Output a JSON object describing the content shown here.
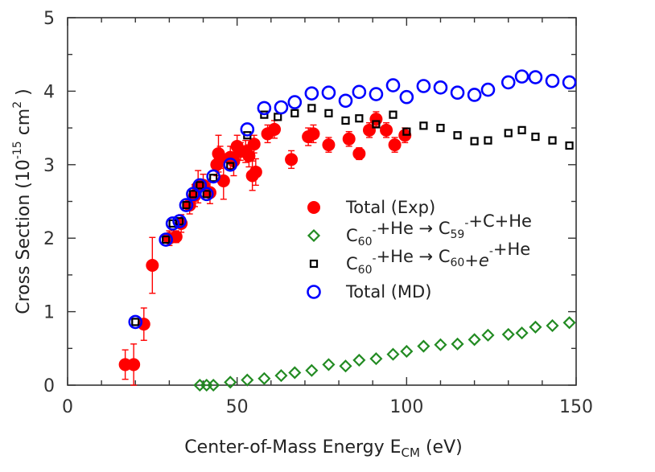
{
  "chart_data": {
    "type": "scatter",
    "xlabel": {
      "main": "Center-of-Mass Energy E",
      "sub": "CM",
      "tail": " (eV)"
    },
    "ylabel": {
      "main": "Cross Section (10",
      "sup": "-15",
      "mid": " cm",
      "sup2": "2",
      "tail": " )"
    },
    "xlim": [
      0,
      150
    ],
    "ylim": [
      0,
      5
    ],
    "x_ticks": [
      0,
      50,
      100,
      150
    ],
    "y_ticks": [
      0,
      1,
      2,
      3,
      4,
      5
    ],
    "grid": false,
    "legend_placement": "center-right",
    "series": [
      {
        "key": "total_exp",
        "marker": "filled-circle",
        "color": "#ff0000",
        "label_parts": [
          {
            "t": "Total (Exp)"
          }
        ],
        "points": [
          {
            "x": 17,
            "y": 0.28,
            "err": 0.2
          },
          {
            "x": 19.5,
            "y": 0.28,
            "err": 0.28
          },
          {
            "x": 22.5,
            "y": 0.83,
            "err": 0.22
          },
          {
            "x": 25,
            "y": 1.63,
            "err": 0.38
          },
          {
            "x": 30,
            "y": 2.0,
            "err": 0.1
          },
          {
            "x": 32,
            "y": 2.02,
            "err": 0.08
          },
          {
            "x": 33.5,
            "y": 2.2,
            "err": 0.12
          },
          {
            "x": 36,
            "y": 2.45,
            "err": 0.12
          },
          {
            "x": 37.5,
            "y": 2.58,
            "err": 0.15
          },
          {
            "x": 38.5,
            "y": 2.7,
            "err": 0.22
          },
          {
            "x": 40,
            "y": 2.72,
            "err": 0.15
          },
          {
            "x": 42,
            "y": 2.62,
            "err": 0.15
          },
          {
            "x": 44,
            "y": 3.0,
            "err": 0.15
          },
          {
            "x": 44.5,
            "y": 3.15,
            "err": 0.25
          },
          {
            "x": 45,
            "y": 3.1,
            "err": 0.15
          },
          {
            "x": 46,
            "y": 2.78,
            "err": 0.25
          },
          {
            "x": 48,
            "y": 3.1,
            "err": 0.15
          },
          {
            "x": 49,
            "y": 3.05,
            "err": 0.2
          },
          {
            "x": 50,
            "y": 3.25,
            "err": 0.15
          },
          {
            "x": 51,
            "y": 3.18,
            "err": 0.12
          },
          {
            "x": 52.5,
            "y": 3.18,
            "err": 0.15
          },
          {
            "x": 53.5,
            "y": 3.12,
            "err": 0.15
          },
          {
            "x": 54.5,
            "y": 2.85,
            "err": 0.2
          },
          {
            "x": 55,
            "y": 3.28,
            "err": 0.12
          },
          {
            "x": 55.5,
            "y": 2.9,
            "err": 0.18
          },
          {
            "x": 59,
            "y": 3.42,
            "err": 0.12
          },
          {
            "x": 61,
            "y": 3.48,
            "err": 0.12
          },
          {
            "x": 66,
            "y": 3.07,
            "err": 0.12
          },
          {
            "x": 71,
            "y": 3.38,
            "err": 0.12
          },
          {
            "x": 72.5,
            "y": 3.42,
            "err": 0.12
          },
          {
            "x": 77,
            "y": 3.27,
            "err": 0.1
          },
          {
            "x": 83,
            "y": 3.35,
            "err": 0.1
          },
          {
            "x": 86,
            "y": 3.15,
            "err": 0.08
          },
          {
            "x": 89,
            "y": 3.47,
            "err": 0.1
          },
          {
            "x": 91,
            "y": 3.62,
            "err": 0.1
          },
          {
            "x": 94,
            "y": 3.47,
            "err": 0.1
          },
          {
            "x": 96.5,
            "y": 3.27,
            "err": 0.1
          },
          {
            "x": 99.5,
            "y": 3.4,
            "err": 0.1
          }
        ]
      },
      {
        "key": "c59",
        "marker": "open-diamond",
        "color": "#228b22",
        "label_parts": [
          {
            "t": "C"
          },
          {
            "t": "60",
            "s": "sub"
          },
          {
            "t": "-",
            "s": "sup"
          },
          {
            "t": "+He → C"
          },
          {
            "t": "59",
            "s": "sub"
          },
          {
            "t": "-",
            "s": "sup"
          },
          {
            "t": "+C+He"
          }
        ],
        "points": [
          {
            "x": 39,
            "y": 0.0
          },
          {
            "x": 41,
            "y": 0.0
          },
          {
            "x": 43,
            "y": 0.0
          },
          {
            "x": 48,
            "y": 0.04
          },
          {
            "x": 53,
            "y": 0.07
          },
          {
            "x": 58,
            "y": 0.09
          },
          {
            "x": 63,
            "y": 0.13
          },
          {
            "x": 67,
            "y": 0.17
          },
          {
            "x": 72,
            "y": 0.2
          },
          {
            "x": 77,
            "y": 0.28
          },
          {
            "x": 82,
            "y": 0.26
          },
          {
            "x": 86,
            "y": 0.34
          },
          {
            "x": 91,
            "y": 0.36
          },
          {
            "x": 96,
            "y": 0.42
          },
          {
            "x": 100,
            "y": 0.46
          },
          {
            "x": 105,
            "y": 0.53
          },
          {
            "x": 110,
            "y": 0.55
          },
          {
            "x": 115,
            "y": 0.56
          },
          {
            "x": 120,
            "y": 0.62
          },
          {
            "x": 124,
            "y": 0.68
          },
          {
            "x": 130,
            "y": 0.69
          },
          {
            "x": 134,
            "y": 0.71
          },
          {
            "x": 138,
            "y": 0.79
          },
          {
            "x": 143,
            "y": 0.81
          },
          {
            "x": 148,
            "y": 0.85
          }
        ]
      },
      {
        "key": "c60_e",
        "marker": "open-square",
        "color": "#000000",
        "label_parts": [
          {
            "t": "C"
          },
          {
            "t": "60",
            "s": "sub"
          },
          {
            "t": "-",
            "s": "sup"
          },
          {
            "t": "+He → C"
          },
          {
            "t": "60",
            "s": "sub"
          },
          {
            "t": "+"
          },
          {
            "t": "e",
            "s": "it"
          },
          {
            "t": "-",
            "s": "sup"
          },
          {
            "t": "+He"
          }
        ],
        "points": [
          {
            "x": 20,
            "y": 0.86
          },
          {
            "x": 29,
            "y": 1.98
          },
          {
            "x": 31,
            "y": 2.2
          },
          {
            "x": 33,
            "y": 2.23
          },
          {
            "x": 35,
            "y": 2.45
          },
          {
            "x": 37,
            "y": 2.6
          },
          {
            "x": 39,
            "y": 2.72
          },
          {
            "x": 41,
            "y": 2.6
          },
          {
            "x": 43,
            "y": 2.82
          },
          {
            "x": 48,
            "y": 2.98
          },
          {
            "x": 53,
            "y": 3.4
          },
          {
            "x": 58,
            "y": 3.68
          },
          {
            "x": 62,
            "y": 3.65
          },
          {
            "x": 67,
            "y": 3.7
          },
          {
            "x": 72,
            "y": 3.77
          },
          {
            "x": 77,
            "y": 3.7
          },
          {
            "x": 82,
            "y": 3.6
          },
          {
            "x": 86,
            "y": 3.63
          },
          {
            "x": 91,
            "y": 3.55
          },
          {
            "x": 96,
            "y": 3.68
          },
          {
            "x": 100,
            "y": 3.45
          },
          {
            "x": 105,
            "y": 3.53
          },
          {
            "x": 110,
            "y": 3.5
          },
          {
            "x": 115,
            "y": 3.4
          },
          {
            "x": 120,
            "y": 3.32
          },
          {
            "x": 124,
            "y": 3.33
          },
          {
            "x": 130,
            "y": 3.43
          },
          {
            "x": 134,
            "y": 3.47
          },
          {
            "x": 138,
            "y": 3.38
          },
          {
            "x": 143,
            "y": 3.33
          },
          {
            "x": 148,
            "y": 3.26
          }
        ]
      },
      {
        "key": "total_md",
        "marker": "open-circle",
        "color": "#0000ff",
        "label_parts": [
          {
            "t": "Total (MD)"
          }
        ],
        "points": [
          {
            "x": 20,
            "y": 0.86
          },
          {
            "x": 29,
            "y": 1.98
          },
          {
            "x": 31,
            "y": 2.2
          },
          {
            "x": 33,
            "y": 2.23
          },
          {
            "x": 35,
            "y": 2.45
          },
          {
            "x": 37,
            "y": 2.6
          },
          {
            "x": 39,
            "y": 2.72
          },
          {
            "x": 41,
            "y": 2.6
          },
          {
            "x": 43,
            "y": 2.84
          },
          {
            "x": 48,
            "y": 3.0
          },
          {
            "x": 53,
            "y": 3.48
          },
          {
            "x": 58,
            "y": 3.77
          },
          {
            "x": 63,
            "y": 3.78
          },
          {
            "x": 67,
            "y": 3.85
          },
          {
            "x": 72,
            "y": 3.97
          },
          {
            "x": 77,
            "y": 3.98
          },
          {
            "x": 82,
            "y": 3.87
          },
          {
            "x": 86,
            "y": 3.99
          },
          {
            "x": 91,
            "y": 3.96
          },
          {
            "x": 96,
            "y": 4.08
          },
          {
            "x": 100,
            "y": 3.92
          },
          {
            "x": 105,
            "y": 4.07
          },
          {
            "x": 110,
            "y": 4.05
          },
          {
            "x": 115,
            "y": 3.98
          },
          {
            "x": 120,
            "y": 3.95
          },
          {
            "x": 124,
            "y": 4.02
          },
          {
            "x": 130,
            "y": 4.12
          },
          {
            "x": 134,
            "y": 4.2
          },
          {
            "x": 138,
            "y": 4.19
          },
          {
            "x": 143,
            "y": 4.14
          },
          {
            "x": 148,
            "y": 4.12
          }
        ]
      }
    ]
  }
}
